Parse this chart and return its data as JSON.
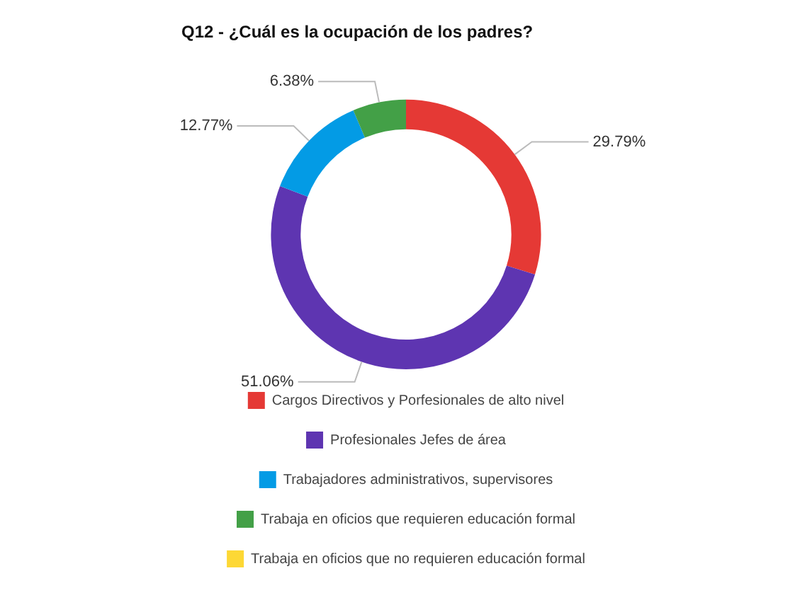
{
  "chart_data": {
    "type": "donut",
    "title": "Q12 - ¿Cuál es la ocupación de los padres?",
    "categories": [
      "Cargos Directivos y Porfesionales de alto nivel",
      "Profesionales Jefes de área",
      "Trabajadores administrativos, supervisores",
      "Trabaja en oficios que requieren educación formal",
      "Trabaja en oficios que no requieren educación formal"
    ],
    "values": [
      29.79,
      51.06,
      12.77,
      6.38,
      0
    ],
    "colors": [
      "#e53935",
      "#5e35b1",
      "#039be5",
      "#43a047",
      "#fdd835"
    ],
    "value_labels": [
      "29.79%",
      "51.06%",
      "12.77%",
      "6.38%",
      null
    ],
    "legend": "bottom"
  }
}
